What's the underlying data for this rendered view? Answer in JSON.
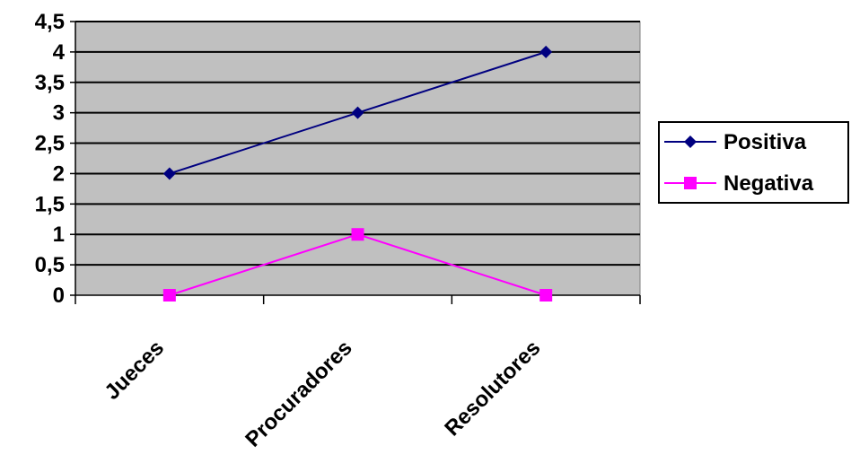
{
  "chart_data": {
    "type": "line",
    "categories": [
      "Jueces",
      "Procuradores",
      "Resolutores"
    ],
    "series": [
      {
        "name": "Positiva",
        "values": [
          2,
          3,
          4
        ],
        "color": "#000080",
        "marker": "diamond"
      },
      {
        "name": "Negativa",
        "values": [
          0,
          1,
          0
        ],
        "color": "#FF00FF",
        "marker": "square"
      }
    ],
    "ylim": [
      0,
      4.5
    ],
    "yticks": [
      "0",
      "0,5",
      "1",
      "1,5",
      "2",
      "2,5",
      "3",
      "3,5",
      "4",
      "4,5"
    ],
    "grid": true,
    "plot_background": "#C0C0C0",
    "legend_position": "right"
  }
}
